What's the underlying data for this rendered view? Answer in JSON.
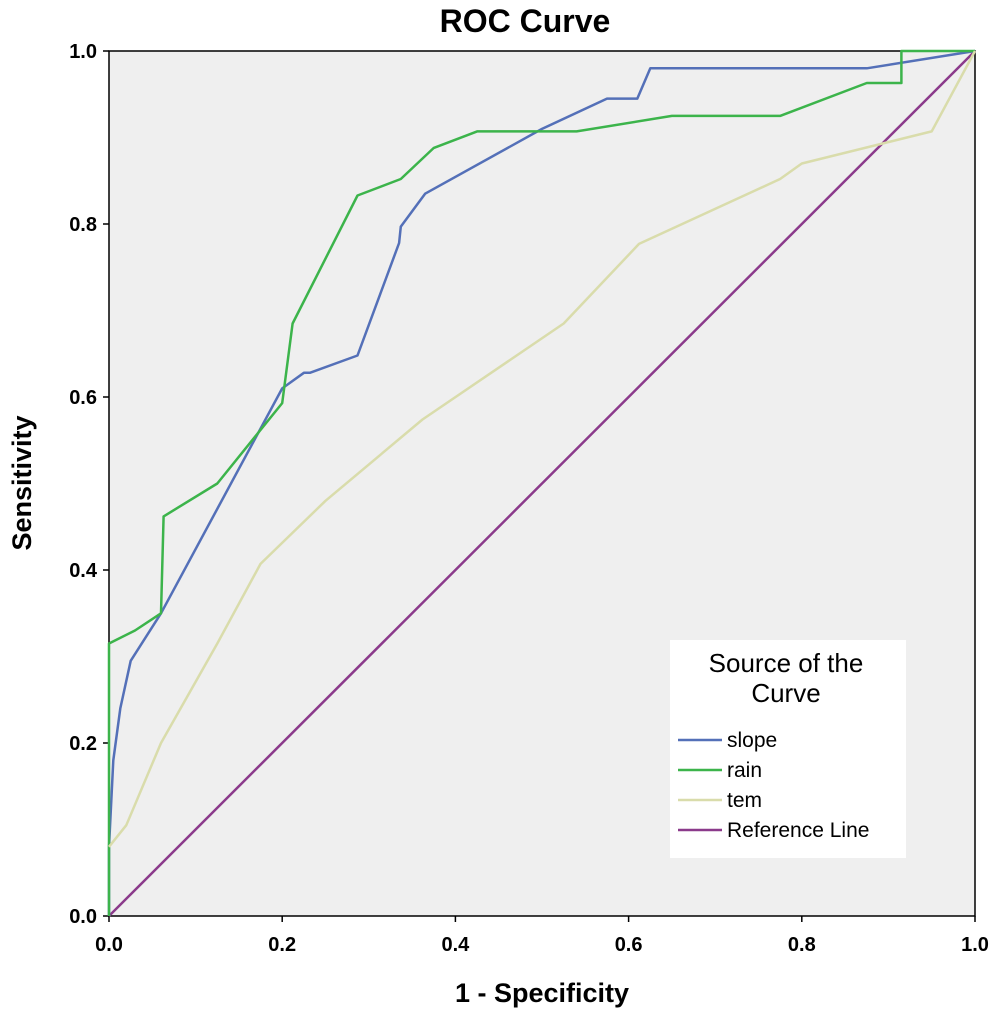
{
  "chart_data": {
    "type": "line",
    "title": "ROC Curve",
    "xlabel": "1 - Specificity",
    "ylabel": "Sensitivity",
    "xlim": [
      0,
      1
    ],
    "ylim": [
      0,
      1
    ],
    "x_ticks": [
      "0.0",
      "0.2",
      "0.4",
      "0.6",
      "0.8",
      "1.0"
    ],
    "y_ticks": [
      "0.0",
      "0.2",
      "0.4",
      "0.6",
      "0.8",
      "1.0"
    ],
    "grid": false,
    "background": "#efefef",
    "legend": {
      "title_lines": [
        "Source of the",
        "Curve"
      ],
      "placement": "bottom-right"
    },
    "series": [
      {
        "name": "slope",
        "color": "#5470b8",
        "points": [
          [
            0,
            0
          ],
          [
            0,
            0.08
          ],
          [
            0.005,
            0.18
          ],
          [
            0.013,
            0.24
          ],
          [
            0.025,
            0.295
          ],
          [
            0.06,
            0.35
          ],
          [
            0.2,
            0.61
          ],
          [
            0.225,
            0.628
          ],
          [
            0.232,
            0.628
          ],
          [
            0.287,
            0.648
          ],
          [
            0.335,
            0.778
          ],
          [
            0.337,
            0.797
          ],
          [
            0.365,
            0.835
          ],
          [
            0.5,
            0.91
          ],
          [
            0.575,
            0.945
          ],
          [
            0.61,
            0.945
          ],
          [
            0.625,
            0.98
          ],
          [
            0.875,
            0.98
          ],
          [
            1.0,
            1.0
          ]
        ]
      },
      {
        "name": "rain",
        "color": "#3cb44b",
        "points": [
          [
            0,
            0
          ],
          [
            0,
            0.315
          ],
          [
            0.03,
            0.33
          ],
          [
            0.06,
            0.35
          ],
          [
            0.063,
            0.462
          ],
          [
            0.125,
            0.5
          ],
          [
            0.2,
            0.593
          ],
          [
            0.212,
            0.685
          ],
          [
            0.287,
            0.833
          ],
          [
            0.337,
            0.852
          ],
          [
            0.375,
            0.888
          ],
          [
            0.425,
            0.907
          ],
          [
            0.54,
            0.907
          ],
          [
            0.65,
            0.925
          ],
          [
            0.775,
            0.925
          ],
          [
            0.875,
            0.963
          ],
          [
            0.915,
            0.963
          ],
          [
            0.915,
            1.0
          ],
          [
            1.0,
            1.0
          ]
        ]
      },
      {
        "name": "tem",
        "color": "#d9dcab",
        "points": [
          [
            0,
            0.08
          ],
          [
            0.02,
            0.105
          ],
          [
            0.06,
            0.2
          ],
          [
            0.125,
            0.315
          ],
          [
            0.175,
            0.407
          ],
          [
            0.25,
            0.48
          ],
          [
            0.362,
            0.574
          ],
          [
            0.525,
            0.685
          ],
          [
            0.612,
            0.777
          ],
          [
            0.775,
            0.852
          ],
          [
            0.8,
            0.87
          ],
          [
            0.95,
            0.907
          ],
          [
            1.0,
            1.0
          ]
        ]
      },
      {
        "name": "Reference Line",
        "color": "#8b3a8b",
        "points": [
          [
            0,
            0
          ],
          [
            1,
            1
          ]
        ]
      }
    ]
  }
}
